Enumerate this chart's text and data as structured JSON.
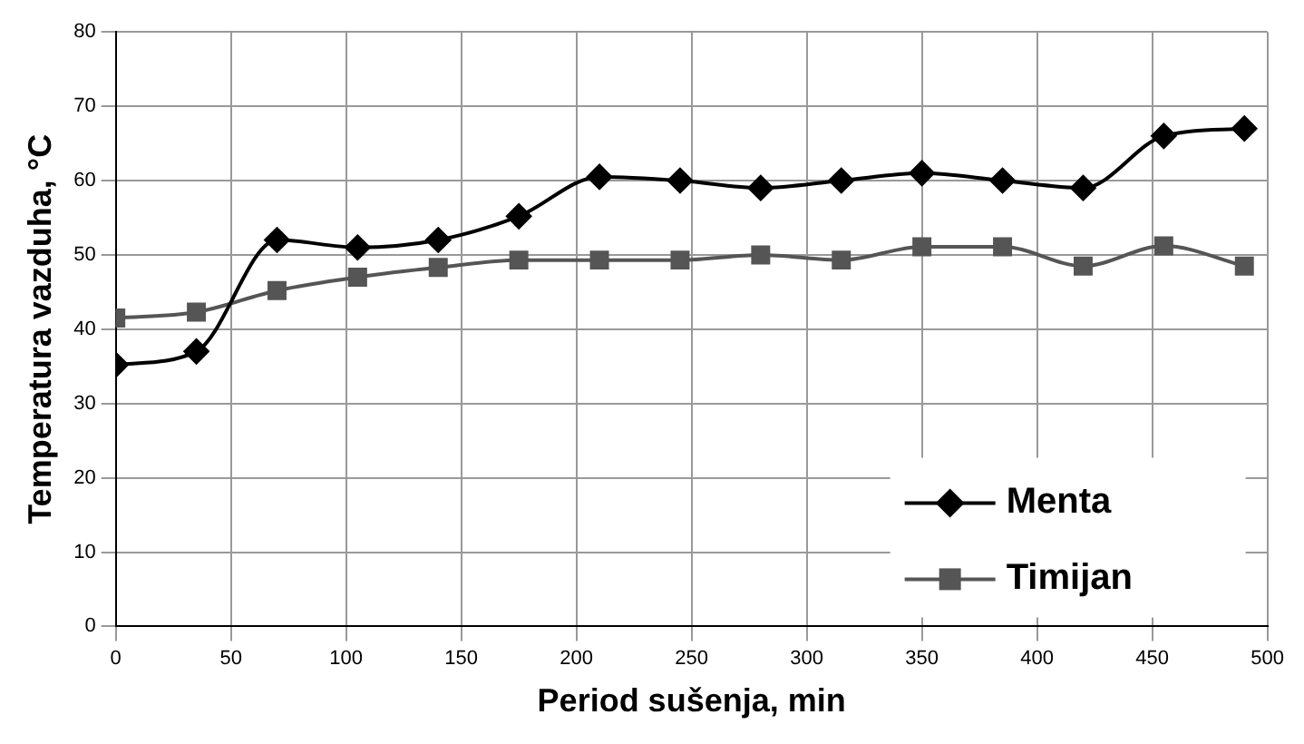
{
  "chart_data": {
    "type": "line",
    "xlabel": "Period sušenja, min",
    "ylabel": "Temperatura vazduha, °C",
    "x": [
      0,
      35,
      70,
      105,
      140,
      175,
      210,
      245,
      280,
      315,
      350,
      385,
      420,
      455,
      490
    ],
    "series": [
      {
        "name": "Menta",
        "color": "#000000",
        "marker": "diamond",
        "values": [
          35.2,
          37,
          52,
          51,
          52,
          55.2,
          60.5,
          60,
          59,
          60,
          61,
          60,
          59,
          66,
          67
        ]
      },
      {
        "name": "Timijan",
        "color": "#555555",
        "marker": "square",
        "values": [
          41.5,
          42.3,
          45.2,
          47,
          48.3,
          49.3,
          49.3,
          49.3,
          50,
          49.3,
          51.1,
          51.1,
          48.5,
          51.2,
          48.5
        ]
      }
    ],
    "xlim": [
      0,
      500
    ],
    "xticks": [
      0,
      50,
      100,
      150,
      200,
      250,
      300,
      350,
      400,
      450,
      500
    ],
    "ylim": [
      0,
      80
    ],
    "yticks": [
      0,
      10,
      20,
      30,
      40,
      50,
      60,
      70,
      80
    ],
    "grid": true,
    "legend": "bottom right",
    "line_style": "solid"
  }
}
